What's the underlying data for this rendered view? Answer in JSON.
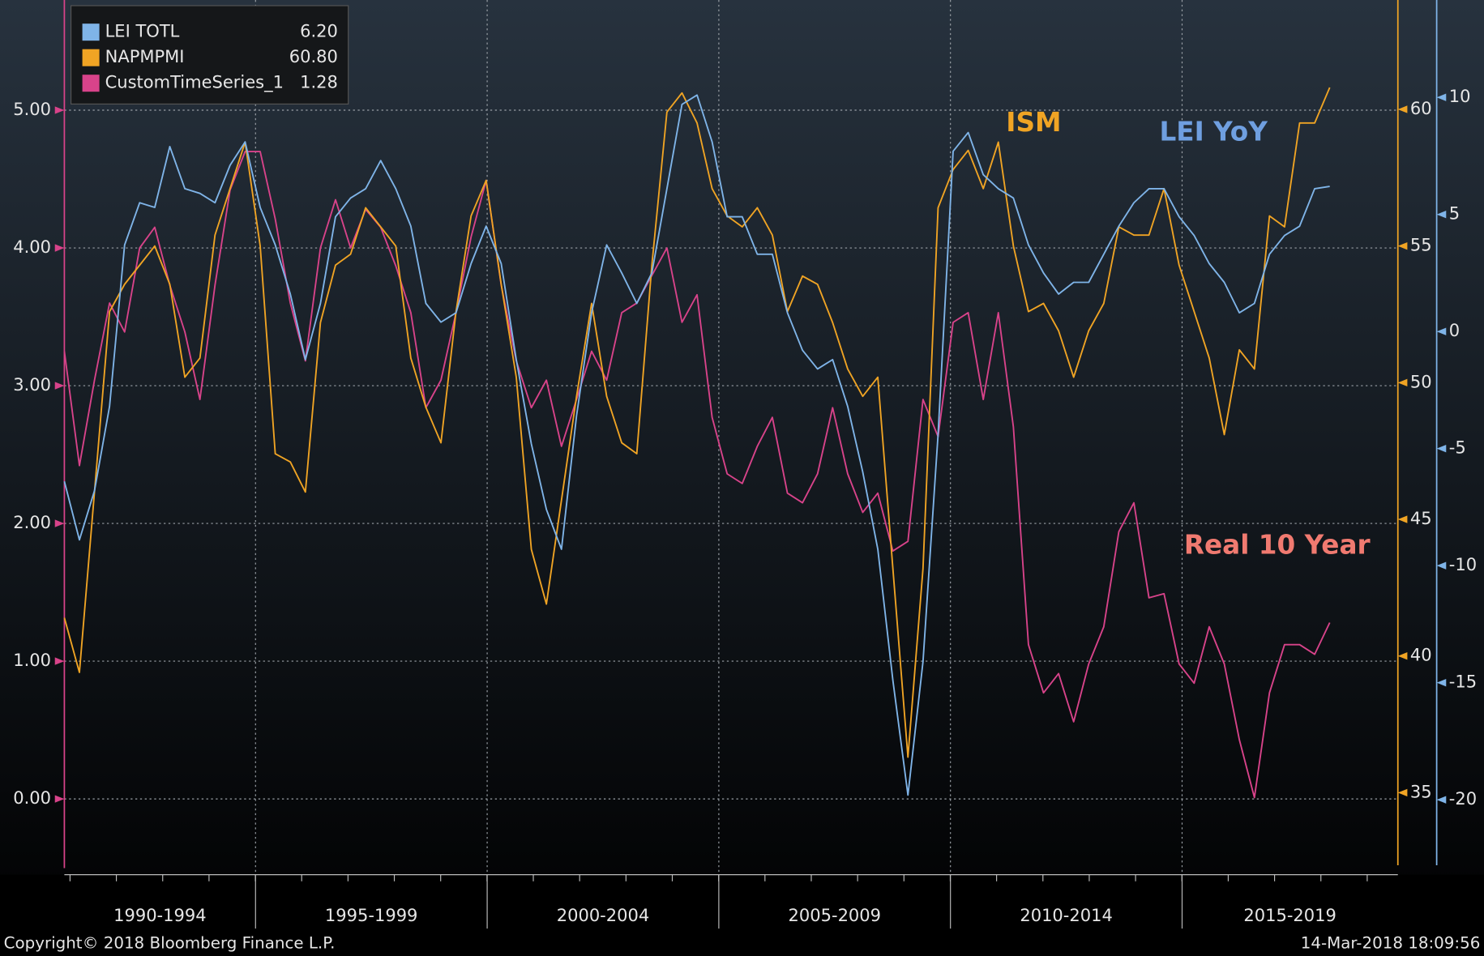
{
  "chart_data": {
    "type": "line",
    "periods": [
      "1990-1994",
      "1995-1999",
      "2000-2004",
      "2005-2009",
      "2010-2014",
      "2015-2019"
    ],
    "ylim": [
      -0.55,
      5.8
    ],
    "yticks": [
      {
        "value": 0,
        "label": "0.00"
      },
      {
        "value": 1,
        "label": "1.00"
      },
      {
        "value": 2,
        "label": "2.00"
      },
      {
        "value": 3,
        "label": "3.00"
      },
      {
        "value": 4,
        "label": "4.00"
      },
      {
        "value": 5,
        "label": "5.00"
      }
    ],
    "y2lim": [
      32,
      64
    ],
    "y2ticks": [
      35,
      40,
      45,
      50,
      55,
      60
    ],
    "y3lim": [
      -23.2,
      14.16
    ],
    "y3ticks": [
      -20,
      -15,
      -10,
      -5,
      0,
      5,
      10
    ],
    "grid": true,
    "legend": "top-left",
    "series": [
      {
        "name": "LEI TOTL",
        "last_label": "6.20",
        "color": "#7fb4e8",
        "axis": "y3",
        "values": [
          -6.4,
          -8.9,
          -6.8,
          -3.2,
          3.7,
          5.5,
          5.3,
          7.9,
          6.1,
          5.9,
          5.5,
          7.1,
          8.1,
          5.3,
          3.7,
          1.6,
          -1.2,
          1.2,
          4.9,
          5.7,
          6.1,
          7.3,
          6.1,
          4.5,
          1.2,
          0.4,
          0.8,
          2.9,
          4.5,
          2.9,
          -1.2,
          -4.8,
          -7.6,
          -9.3,
          -3.6,
          0.8,
          3.7,
          2.5,
          1.2,
          2.5,
          6.1,
          9.7,
          10.1,
          8.1,
          4.9,
          4.9,
          3.3,
          3.3,
          0.8,
          -0.8,
          -1.6,
          -1.2,
          -3.2,
          -6.0,
          -9.3,
          -14.9,
          -19.8,
          -14.1,
          -4.4,
          7.7,
          8.5,
          6.7,
          6.1,
          5.7,
          3.7,
          2.5,
          1.6,
          2.1,
          2.1,
          3.3,
          4.5,
          5.5,
          6.1,
          6.1,
          4.9,
          4.1,
          2.9,
          2.1,
          0.8,
          1.2,
          3.3,
          4.1,
          4.5,
          6.1,
          6.2
        ]
      },
      {
        "name": "NAPMPMI",
        "last_label": "60.80",
        "color": "#f0a424",
        "axis": "y2",
        "values": [
          41.4,
          39.4,
          46.0,
          52.6,
          53.6,
          54.3,
          55.0,
          53.6,
          50.2,
          50.9,
          55.4,
          57.1,
          58.8,
          55.0,
          47.4,
          47.1,
          46.0,
          52.2,
          54.3,
          54.7,
          56.4,
          55.7,
          55.0,
          50.9,
          49.1,
          47.8,
          52.6,
          56.1,
          57.4,
          53.6,
          50.2,
          43.9,
          41.9,
          45.7,
          49.5,
          52.9,
          49.5,
          47.8,
          47.4,
          54.3,
          59.9,
          60.6,
          59.5,
          57.1,
          56.1,
          55.7,
          56.4,
          55.4,
          52.6,
          53.9,
          53.6,
          52.2,
          50.5,
          49.5,
          50.2,
          43.2,
          36.3,
          43.2,
          56.4,
          57.8,
          58.5,
          57.1,
          58.8,
          55.0,
          52.6,
          52.9,
          51.9,
          50.2,
          51.9,
          52.9,
          55.7,
          55.4,
          55.4,
          57.1,
          54.3,
          52.6,
          50.9,
          48.1,
          51.2,
          50.5,
          56.1,
          55.7,
          59.5,
          59.5,
          60.8
        ]
      },
      {
        "name": "CustomTimeSeries_1",
        "last_label": "1.28",
        "color": "#d8438a",
        "axis": "y",
        "values": [
          3.25,
          2.42,
          3.04,
          3.6,
          3.39,
          4.0,
          4.15,
          3.73,
          3.39,
          2.9,
          3.73,
          4.42,
          4.7,
          4.7,
          4.21,
          3.6,
          3.18,
          4.0,
          4.35,
          4.0,
          4.28,
          4.15,
          3.87,
          3.53,
          2.84,
          3.04,
          3.53,
          4.08,
          4.49,
          3.73,
          3.18,
          2.84,
          3.04,
          2.56,
          2.9,
          3.25,
          3.04,
          3.53,
          3.6,
          3.8,
          4.0,
          3.46,
          3.66,
          2.77,
          2.36,
          2.29,
          2.56,
          2.77,
          2.22,
          2.15,
          2.36,
          2.84,
          2.36,
          2.08,
          2.22,
          1.8,
          1.87,
          2.9,
          2.63,
          3.46,
          3.53,
          2.9,
          3.53,
          2.7,
          1.12,
          0.77,
          0.91,
          0.56,
          0.98,
          1.25,
          1.94,
          2.15,
          1.46,
          1.49,
          0.98,
          0.84,
          1.25,
          0.98,
          0.43,
          0.01,
          0.77,
          1.12,
          1.12,
          1.05,
          1.28
        ]
      }
    ],
    "annotations": [
      {
        "text": "ISM",
        "color": "#f0a424"
      },
      {
        "text": "LEI YoY",
        "color": "#6f9fe0"
      },
      {
        "text": "Real 10 Year",
        "color": "#f07a70"
      }
    ],
    "footer_left": "Copyright© 2018 Bloomberg Finance L.P.",
    "footer_right": "14-Mar-2018 18:09:56"
  }
}
